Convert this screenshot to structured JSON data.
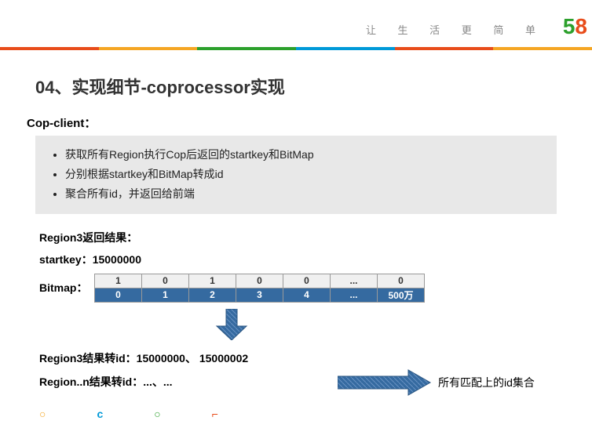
{
  "header": {
    "slogan": "让 生 活 更 简 单",
    "logo_5": "5",
    "logo_8": "8"
  },
  "colorbar": [
    "#e84c1a",
    "#f5a623",
    "#2ca02c",
    "#0099d8",
    "#e84c1a",
    "#f5a623"
  ],
  "title": "04、实现细节-coprocessor实现",
  "cop_label": "Cop-client：",
  "bullets": [
    "获取所有Region执行Cop后返回的startkey和BitMap",
    "分别根据startkey和BitMap转成id",
    "聚合所有id，并返回给前端"
  ],
  "result_label": "Region3返回结果：",
  "startkey_label": "startkey：15000000",
  "bitmap_label": "Bitmap：",
  "bitmap": {
    "row0": [
      "1",
      "0",
      "1",
      "0",
      "0",
      "...",
      "0"
    ],
    "row1": [
      "0",
      "1",
      "2",
      "3",
      "4",
      "...",
      "500万"
    ]
  },
  "id_result1": "Region3结果转id：15000000、 15000002",
  "id_result2": "Region..n结果转id：...、...",
  "final_label": "所有匹配上的id集合",
  "arrow_color": "#356aa0",
  "footer_dots": [
    {
      "char": "○",
      "color": "#f5a623"
    },
    {
      "char": "c",
      "color": "#0099d8"
    },
    {
      "char": "○",
      "color": "#2ca02c"
    },
    {
      "char": "⌐",
      "color": "#e84c1a"
    }
  ]
}
